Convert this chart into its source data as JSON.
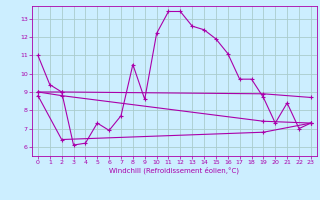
{
  "xlabel": "Windchill (Refroidissement éolien,°C)",
  "background_color": "#cceeff",
  "grid_color": "#aacccc",
  "line_color": "#aa00aa",
  "xlim": [
    -0.5,
    23.5
  ],
  "ylim": [
    5.5,
    13.7
  ],
  "xticks": [
    0,
    1,
    2,
    3,
    4,
    5,
    6,
    7,
    8,
    9,
    10,
    11,
    12,
    13,
    14,
    15,
    16,
    17,
    18,
    19,
    20,
    21,
    22,
    23
  ],
  "yticks": [
    6,
    7,
    8,
    9,
    10,
    11,
    12,
    13
  ],
  "series1_x": [
    0,
    1,
    2,
    3,
    4,
    5,
    6,
    7,
    8,
    9,
    10,
    11,
    12,
    13,
    14,
    15,
    16,
    17,
    18,
    19,
    20,
    21,
    22,
    23
  ],
  "series1_y": [
    11.0,
    9.4,
    9.0,
    6.1,
    6.2,
    7.3,
    6.9,
    7.7,
    10.5,
    8.6,
    12.2,
    13.4,
    13.4,
    12.6,
    12.4,
    11.9,
    11.1,
    9.7,
    9.7,
    8.7,
    7.3,
    8.4,
    7.0,
    7.3
  ],
  "series2_x": [
    0,
    2,
    19,
    23
  ],
  "series2_y": [
    9.0,
    9.0,
    8.9,
    8.7
  ],
  "series3_x": [
    0,
    2,
    19,
    23
  ],
  "series3_y": [
    9.0,
    8.8,
    7.4,
    7.3
  ],
  "series4_x": [
    0,
    2,
    19,
    23
  ],
  "series4_y": [
    8.8,
    6.4,
    6.8,
    7.3
  ]
}
